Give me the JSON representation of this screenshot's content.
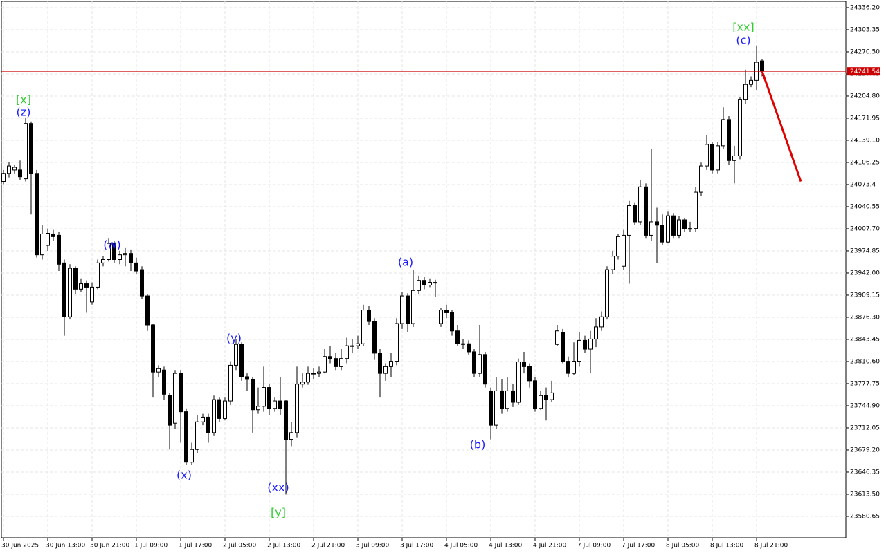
{
  "chart_data": {
    "type": "candlestick",
    "categories": [
      "30 Jun 2025",
      null,
      null,
      null,
      null,
      null,
      null,
      null,
      "30 Jun 13:00",
      null,
      null,
      null,
      null,
      null,
      null,
      null,
      "30 Jun 21:00",
      null,
      null,
      null,
      null,
      null,
      null,
      null,
      "1 Jul 09:00",
      null,
      null,
      null,
      null,
      null,
      null,
      null,
      "1 Jul 17:00",
      null,
      null,
      null,
      null,
      null,
      null,
      null,
      "2 Jul 05:00",
      null,
      null,
      null,
      null,
      null,
      null,
      null,
      "2 Jul 13:00",
      null,
      null,
      null,
      null,
      null,
      null,
      null,
      "2 Jul 21:00",
      null,
      null,
      null,
      null,
      null,
      null,
      null,
      "3 Jul 09:00",
      null,
      null,
      null,
      null,
      null,
      null,
      null,
      "3 Jul 17:00",
      null,
      null,
      null,
      null,
      null,
      null,
      null,
      "4 Jul 05:00",
      null,
      null,
      null,
      null,
      null,
      null,
      null,
      "4 Jul 13:00",
      null,
      null,
      null,
      null,
      null,
      null,
      null,
      "4 Jul 21:00",
      null,
      null,
      null,
      null,
      null,
      null,
      null,
      "7 Jul 09:00",
      null,
      null,
      null,
      null,
      null,
      null,
      null,
      "7 Jul 17:00",
      null,
      null,
      null,
      null,
      null,
      null,
      null,
      "8 Jul 05:00",
      null,
      null,
      null,
      null,
      null,
      null,
      null,
      "8 Jul 13:00",
      null,
      null,
      null,
      null,
      null,
      null,
      null,
      "8 Jul 21:00",
      null
    ],
    "open": [
      24078,
      24090,
      24095,
      24095,
      24082,
      24164,
      24090,
      23969,
      23983,
      24000,
      23998,
      23957,
      23877,
      23949,
      23918,
      23926,
      23899,
      23921,
      23957,
      23962,
      23986,
      23962,
      23969,
      23971,
      23957,
      23947,
      23908,
      23865,
      23795,
      23798,
      23760,
      23719,
      23793,
      23736,
      23661,
      23680,
      23721,
      23728,
      23705,
      23754,
      23726,
      23752,
      23805,
      23836,
      23788,
      23784,
      23739,
      23744,
      23772,
      23741,
      23752,
      23752,
      23695,
      23705,
      23777,
      23780,
      23793,
      23793,
      23795,
      23818,
      23815,
      23803,
      23815,
      23834,
      23834,
      23837,
      23887,
      23870,
      23823,
      23793,
      23803,
      23811,
      23867,
      23908,
      23867,
      23916,
      23931,
      23924,
      23928,
      23867,
      23887,
      23883,
      23856,
      23837,
      23837,
      23825,
      23793,
      23821,
      23767,
      23716,
      23767,
      23741,
      23767,
      23750,
      23810,
      23803,
      23782,
      23741,
      23760,
      23754,
      23836,
      23854,
      23811,
      23793,
      23811,
      23842,
      23829,
      23844,
      23862,
      23877,
      23947,
      23967,
      23952,
      23998,
      24042,
      24018,
      24070,
      23998,
      24018,
      24013,
      23988,
      24027,
      23998,
      24021,
      24008,
      24008,
      24062,
      24101,
      24133,
      24095,
      24131,
      24170,
      24109,
      24116,
      24200,
      24222,
      24228,
      24257
    ],
    "high": [
      24095,
      24107,
      24103,
      24109,
      24172,
      24167,
      24095,
      24013,
      24008,
      24006,
      24003,
      23962,
      23955,
      23952,
      23934,
      23931,
      23928,
      23962,
      23967,
      23993,
      23990,
      23975,
      23979,
      23977,
      23965,
      23952,
      23911,
      23867,
      23805,
      23803,
      23764,
      23798,
      23798,
      23741,
      23690,
      23731,
      23733,
      23733,
      23760,
      23757,
      23757,
      23811,
      23844,
      23839,
      23793,
      23788,
      23772,
      23803,
      23777,
      23757,
      23788,
      23754,
      23721,
      23803,
      23793,
      23803,
      23801,
      23803,
      23829,
      23834,
      23823,
      23829,
      23846,
      23844,
      23849,
      23895,
      23893,
      23875,
      23829,
      23808,
      23823,
      23875,
      23914,
      23912,
      23947,
      23938,
      23936,
      23934,
      23932,
      23890,
      23895,
      23887,
      23865,
      23844,
      23842,
      23829,
      23865,
      23825,
      23772,
      23788,
      23784,
      23788,
      23777,
      23815,
      23825,
      23808,
      23788,
      23767,
      23772,
      23782,
      23865,
      23859,
      23818,
      23839,
      23854,
      23849,
      23856,
      23875,
      23885,
      23952,
      23975,
      24000,
      24006,
      24049,
      24047,
      24080,
      24075,
      24126,
      24039,
      24029,
      24034,
      24031,
      24027,
      24024,
      24018,
      24070,
      24106,
      24147,
      24137,
      24137,
      24188,
      24175,
      24131,
      24203,
      24244,
      24234,
      24280,
      24260
    ],
    "low": [
      24074,
      24084,
      24090,
      24080,
      24078,
      24029,
      23965,
      23962,
      23975,
      23990,
      23945,
      23849,
      23873,
      23911,
      23914,
      23883,
      23895,
      23918,
      23952,
      23959,
      23957,
      23955,
      23952,
      23945,
      23941,
      23904,
      23856,
      23757,
      23788,
      23754,
      23680,
      23711,
      23690,
      23657,
      23657,
      23675,
      23716,
      23690,
      23700,
      23721,
      23723,
      23746,
      23798,
      23782,
      23767,
      23705,
      23733,
      23736,
      23731,
      23736,
      23731,
      23613,
      23685,
      23698,
      23772,
      23776,
      23784,
      23788,
      23793,
      23808,
      23798,
      23798,
      23808,
      23823,
      23829,
      23834,
      23865,
      23813,
      23757,
      23782,
      23788,
      23805,
      23859,
      23854,
      23862,
      23911,
      23918,
      23921,
      23906,
      23862,
      23875,
      23849,
      23834,
      23829,
      23821,
      23788,
      23788,
      23772,
      23695,
      23711,
      23733,
      23736,
      23743,
      23746,
      23793,
      23772,
      23736,
      23739,
      23723,
      23750,
      23834,
      23808,
      23788,
      23790,
      23803,
      23823,
      23793,
      23832,
      23856,
      23873,
      23941,
      23962,
      23947,
      23926,
      24013,
      24013,
      23993,
      23990,
      23957,
      23983,
      23986,
      23993,
      23993,
      24003,
      24003,
      24003,
      24057,
      24095,
      24090,
      24090,
      24126,
      24103,
      24075,
      24111,
      24193,
      24218,
      24214,
      24234
    ],
    "close": [
      24090,
      24101,
      24099,
      24085,
      24164,
      24090,
      23969,
      24000,
      24001,
      23996,
      23955,
      23877,
      23949,
      23918,
      23926,
      23921,
      23921,
      23957,
      23962,
      23986,
      23962,
      23969,
      23971,
      23957,
      23945,
      23908,
      23865,
      23795,
      23800,
      23762,
      23716,
      23793,
      23736,
      23661,
      23680,
      23721,
      23728,
      23705,
      23754,
      23726,
      23752,
      23805,
      23836,
      23788,
      23784,
      23739,
      23744,
      23772,
      23741,
      23752,
      23741,
      23695,
      23705,
      23777,
      23780,
      23793,
      23793,
      23795,
      23818,
      23815,
      23803,
      23815,
      23834,
      23834,
      23837,
      23887,
      23870,
      23823,
      23793,
      23803,
      23811,
      23867,
      23908,
      23867,
      23916,
      23931,
      23924,
      23928,
      23928,
      23887,
      23883,
      23856,
      23837,
      23837,
      23825,
      23793,
      23821,
      23777,
      23716,
      23767,
      23741,
      23767,
      23750,
      23810,
      23803,
      23782,
      23741,
      23760,
      23754,
      23764,
      23856,
      23811,
      23793,
      23811,
      23842,
      23829,
      23844,
      23862,
      23877,
      23947,
      23967,
      23996,
      23998,
      24042,
      24018,
      24070,
      23998,
      24018,
      24013,
      23988,
      24027,
      23998,
      24021,
      24008,
      24008,
      24062,
      24101,
      24133,
      24095,
      24131,
      24170,
      24109,
      24116,
      24200,
      24222,
      24228,
      24255,
      24241.54
    ],
    "up_color": "#ffffff",
    "down_color": "#000000",
    "wick_color": "#000000",
    "ylim": [
      23548.8,
      24345.4
    ],
    "yticks": [
      {
        "value": 24336.2,
        "label": "24336.20"
      },
      24303.35,
      {
        "value": 24270.5,
        "label": "24270.50"
      },
      24237.65,
      {
        "value": 24204.8,
        "label": "24204.80"
      },
      24171.95,
      {
        "value": 24139.1,
        "label": "24139.10"
      },
      24106.25,
      24073.4,
      24040.55,
      {
        "value": 24007.7,
        "label": "24007.70"
      },
      23974.85,
      {
        "value": 23942,
        "label": "23942.00"
      },
      23909.15,
      {
        "value": 23876.3,
        "label": "23876.30"
      },
      23843.45,
      {
        "value": 23810.6,
        "label": "23810.60"
      },
      23777.75,
      {
        "value": 23744.9,
        "label": "23744.90"
      },
      23712.05,
      {
        "value": 23679.2,
        "label": "23679.20"
      },
      23646.35,
      {
        "value": 23613.5,
        "label": "23613.50"
      },
      23580.65
    ],
    "grid": true,
    "last_price": 24241.54,
    "last_price_color": "#cc0000",
    "forecast": {
      "x": [
        137,
        144
      ],
      "values": [
        24241.54,
        24078
      ],
      "color": "#e00000"
    },
    "annotations": [
      {
        "text": "[x]",
        "color": "#33cc33"
      },
      {
        "text": "(z)",
        "color": "#1a1aff"
      },
      {
        "text": "(w)",
        "color": "#1a1aff"
      },
      {
        "text": "(x)",
        "color": "#1a1aff"
      },
      {
        "text": "(y)",
        "color": "#1a1aff"
      },
      {
        "text": "(xx)",
        "color": "#1a1aff"
      },
      {
        "text": "[y]",
        "color": "#33cc33"
      },
      {
        "text": "(a)",
        "color": "#1a1aff"
      },
      {
        "text": "(b)",
        "color": "#1a1aff"
      },
      {
        "text": "[xx]",
        "color": "#33cc33"
      },
      {
        "text": "(c)",
        "color": "#1a1aff"
      }
    ]
  }
}
